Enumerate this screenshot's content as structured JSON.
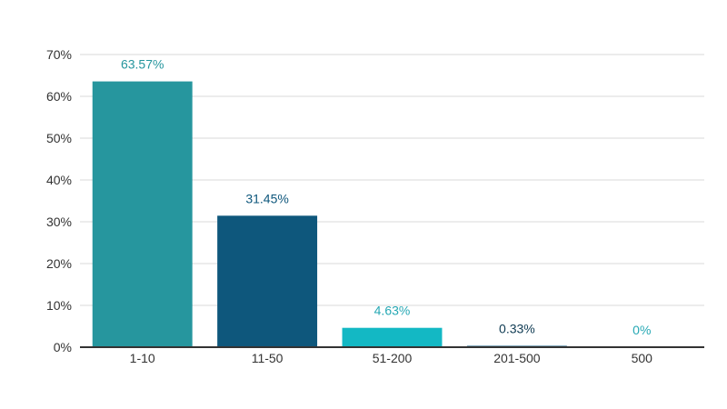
{
  "chart_data": {
    "type": "bar",
    "categories": [
      "1-10",
      "11-50",
      "51-200",
      "201-500",
      "500"
    ],
    "values": [
      63.57,
      31.45,
      4.63,
      0.33,
      0
    ],
    "value_labels": [
      "63.57%",
      "31.45%",
      "4.63%",
      "0.33%",
      "0%"
    ],
    "bar_colors": [
      "#26969e",
      "#0e577c",
      "#13b8c4",
      "#0e577c",
      "#26969e"
    ],
    "label_colors": [
      "#26969e",
      "#0e577c",
      "#26a8b4",
      "#0e3a52",
      "#26a8b4"
    ],
    "ylim": [
      0,
      70
    ],
    "yticks": [
      0,
      10,
      20,
      30,
      40,
      50,
      60,
      70
    ],
    "ytick_labels": [
      "0%",
      "10%",
      "20%",
      "30%",
      "40%",
      "50%",
      "60%",
      "70%"
    ],
    "grid": true,
    "title": "",
    "xlabel": "",
    "ylabel": ""
  }
}
